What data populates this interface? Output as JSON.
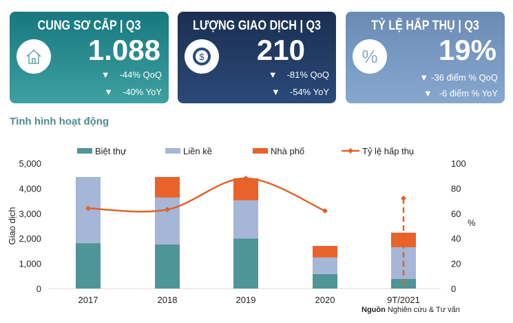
{
  "cards": [
    {
      "title": "CUNG SƠ CẤP | Q3",
      "value": "1.088",
      "icon": "house-icon",
      "changes": [
        "-44% QoQ",
        "-40% YoY"
      ]
    },
    {
      "title": "LƯỢNG GIAO DỊCH | Q3",
      "value": "210",
      "icon": "dollar-coin-icon",
      "changes": [
        "-81% QoQ",
        "-54% YoY"
      ]
    },
    {
      "title": "TỶ LỆ HẤP THỤ | Q3",
      "value": "19%",
      "icon": "percent-icon",
      "changes": [
        "-36 điểm % QoQ",
        "-6 điểm % YoY"
      ]
    }
  ],
  "section_title": "Tình hình hoạt động",
  "source": {
    "bold": "Nguồn",
    "text": " Nghiên cứu & Tư vấn"
  },
  "chart_data": {
    "type": "bar",
    "stacked": true,
    "categories": [
      "2017",
      "2018",
      "2019",
      "2020",
      "9T/2021"
    ],
    "series": [
      {
        "name": "Biệt thự",
        "color": "#4f9497",
        "values": [
          1810,
          1760,
          2000,
          580,
          390
        ]
      },
      {
        "name": "Liền kề",
        "color": "#a5b6d6",
        "values": [
          2640,
          1870,
          1520,
          660,
          1260
        ]
      },
      {
        "name": "Nhà phố",
        "color": "#e8622a",
        "values": [
          0,
          820,
          880,
          460,
          580
        ]
      }
    ],
    "line": {
      "name": "Tỷ lệ hấp thụ",
      "color": "#e0622a",
      "axis": "right",
      "values": [
        64,
        63,
        88,
        62,
        72
      ]
    },
    "ylabel": "Giao dịch",
    "y2label": "%",
    "ylim": [
      0,
      5000
    ],
    "y2lim": [
      0,
      100
    ],
    "yticks": [
      "0",
      "1,000",
      "2,000",
      "3,000",
      "4,000",
      "5,000"
    ],
    "y2ticks": [
      "0",
      "20",
      "40",
      "60",
      "80",
      "100"
    ],
    "legend": "top"
  }
}
